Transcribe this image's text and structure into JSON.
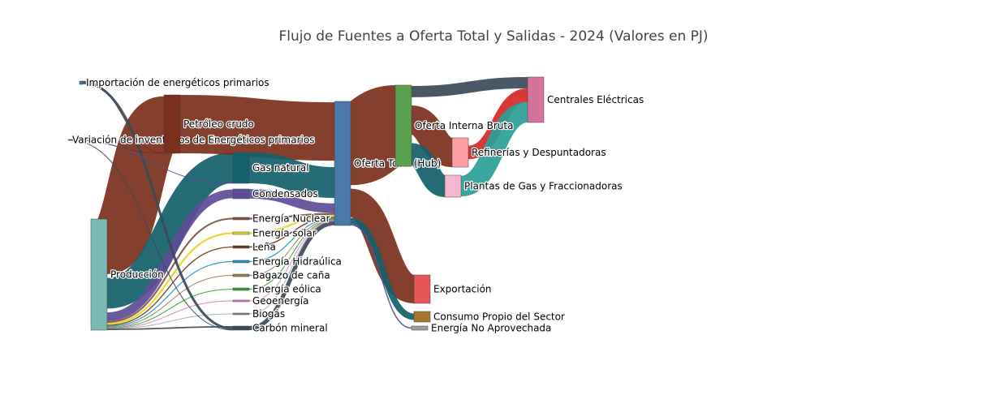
{
  "chart_data": {
    "type": "sankey",
    "title": "Flujo de Fuentes a Oferta Total y Salidas - 2024 (Valores en PJ)",
    "nodes": [
      {
        "id": "imp",
        "label": "Importación de energéticos primarios",
        "color": "#2c7fb8"
      },
      {
        "id": "var",
        "label": "Variación de inventarios de Energéticos primarios",
        "color": "#555555"
      },
      {
        "id": "prod",
        "label": "Producción",
        "color": "#7ab8b3"
      },
      {
        "id": "pet",
        "label": "Petróleo crudo",
        "color": "#7a2f1c"
      },
      {
        "id": "gas",
        "label": "Gas natural",
        "color": "#14606b"
      },
      {
        "id": "cond",
        "label": "Condensados",
        "color": "#5e4d96"
      },
      {
        "id": "nuc",
        "label": "Energía Nuclear",
        "color": "#7e5346"
      },
      {
        "id": "sol",
        "label": "Energía solar",
        "color": "#e8d52a"
      },
      {
        "id": "lena",
        "label": "Leña",
        "color": "#6b3a17"
      },
      {
        "id": "hid",
        "label": "Energía Hidraúlica",
        "color": "#1a95c8"
      },
      {
        "id": "baz",
        "label": "Bagazo de caña",
        "color": "#a07850"
      },
      {
        "id": "eol",
        "label": "Energía eólica",
        "color": "#2ca02c"
      },
      {
        "id": "geo",
        "label": "Geoenergía",
        "color": "#e377c2"
      },
      {
        "id": "bio",
        "label": "Biogás",
        "color": "#888888"
      },
      {
        "id": "carb",
        "label": "Carbón mineral",
        "color": "#3a4a57"
      },
      {
        "id": "hub",
        "label": "Oferta Total (Hub)",
        "color": "#4a78a8"
      },
      {
        "id": "oib",
        "label": "Oferta Interna Bruta",
        "color": "#5aa14f"
      },
      {
        "id": "exp",
        "label": "Exportación",
        "color": "#e45756"
      },
      {
        "id": "cps",
        "label": "Consumo Propio del Sector",
        "color": "#a6762d"
      },
      {
        "id": "ena",
        "label": "Energía No Aprovechada",
        "color": "#9d9d9d"
      },
      {
        "id": "ref",
        "label": "Refinerías y Despuntadoras",
        "color": "#ff9da6"
      },
      {
        "id": "pgf",
        "label": "Plantas de Gas y Fraccionadoras",
        "color": "#f7b6d2"
      },
      {
        "id": "ce",
        "label": "Centrales Eléctricas",
        "color": "#d4739b"
      }
    ],
    "links": [
      {
        "source": "prod",
        "target": "pet",
        "value": 3520,
        "color": "#7a2f1c"
      },
      {
        "source": "prod",
        "target": "gas",
        "value": 2450,
        "color": "#14606b"
      },
      {
        "source": "prod",
        "target": "cond",
        "value": 560,
        "color": "#5e4d96"
      },
      {
        "source": "prod",
        "target": "nuc",
        "value": 110,
        "color": "#7e5346"
      },
      {
        "source": "prod",
        "target": "sol",
        "value": 120,
        "color": "#e8d52a"
      },
      {
        "source": "prod",
        "target": "lena",
        "value": 70,
        "color": "#6b3a17"
      },
      {
        "source": "prod",
        "target": "hid",
        "value": 60,
        "color": "#1a95c8"
      },
      {
        "source": "prod",
        "target": "baz",
        "value": 50,
        "color": "#a07850"
      },
      {
        "source": "prod",
        "target": "eol",
        "value": 40,
        "color": "#2ca02c"
      },
      {
        "source": "prod",
        "target": "geo",
        "value": 20,
        "color": "#e377c2"
      },
      {
        "source": "prod",
        "target": "bio",
        "value": 10,
        "color": "#aaaaaa"
      },
      {
        "source": "prod",
        "target": "carb",
        "value": 90,
        "color": "#3a4a57"
      },
      {
        "source": "imp",
        "target": "pet",
        "value": 20,
        "color": "#7a2f1c"
      },
      {
        "source": "imp",
        "target": "carb",
        "value": 160,
        "color": "#3a4a57"
      },
      {
        "source": "var",
        "target": "pet",
        "value": 10,
        "color": "#7a2f1c"
      },
      {
        "source": "var",
        "target": "gas",
        "value": 20,
        "color": "#5e4d96"
      },
      {
        "source": "var",
        "target": "carb",
        "value": 10,
        "color": "#3a4a57"
      },
      {
        "source": "pet",
        "target": "hub",
        "value": 3550,
        "color": "#7a2f1c"
      },
      {
        "source": "gas",
        "target": "hub",
        "value": 2470,
        "color": "#14606b"
      },
      {
        "source": "cond",
        "target": "hub",
        "value": 560,
        "color": "#5e4d96"
      },
      {
        "source": "nuc",
        "target": "hub",
        "value": 110,
        "color": "#7e5346"
      },
      {
        "source": "sol",
        "target": "hub",
        "value": 120,
        "color": "#e8d52a"
      },
      {
        "source": "lena",
        "target": "hub",
        "value": 70,
        "color": "#6b3a17"
      },
      {
        "source": "hid",
        "target": "hub",
        "value": 60,
        "color": "#1a95c8"
      },
      {
        "source": "baz",
        "target": "hub",
        "value": 50,
        "color": "#a07850"
      },
      {
        "source": "eol",
        "target": "hub",
        "value": 40,
        "color": "#2ca02c"
      },
      {
        "source": "geo",
        "target": "hub",
        "value": 20,
        "color": "#e377c2"
      },
      {
        "source": "bio",
        "target": "hub",
        "value": 10,
        "color": "#aaaaaa"
      },
      {
        "source": "carb",
        "target": "hub",
        "value": 260,
        "color": "#3a4a57"
      },
      {
        "source": "hub",
        "target": "oib",
        "value": 5170,
        "color": "#7a2f1c"
      },
      {
        "source": "hub",
        "target": "exp",
        "value": 1800,
        "color": "#7a2f1c"
      },
      {
        "source": "hub",
        "target": "cps",
        "value": 380,
        "color": "#14606b"
      },
      {
        "source": "hub",
        "target": "ena",
        "value": 70,
        "color": "#5e4d96"
      },
      {
        "source": "oib",
        "target": "ce",
        "value": 540,
        "color": "#3a4a57"
      },
      {
        "source": "oib",
        "target": "ref",
        "value": 1850,
        "color": "#7a2f1c"
      },
      {
        "source": "oib",
        "target": "pgf",
        "value": 1020,
        "color": "#14606b"
      },
      {
        "source": "ref",
        "target": "ce",
        "value": 650,
        "color": "#d62728"
      },
      {
        "source": "pgf",
        "target": "ce",
        "value": 980,
        "color": "#2aa198"
      }
    ]
  }
}
